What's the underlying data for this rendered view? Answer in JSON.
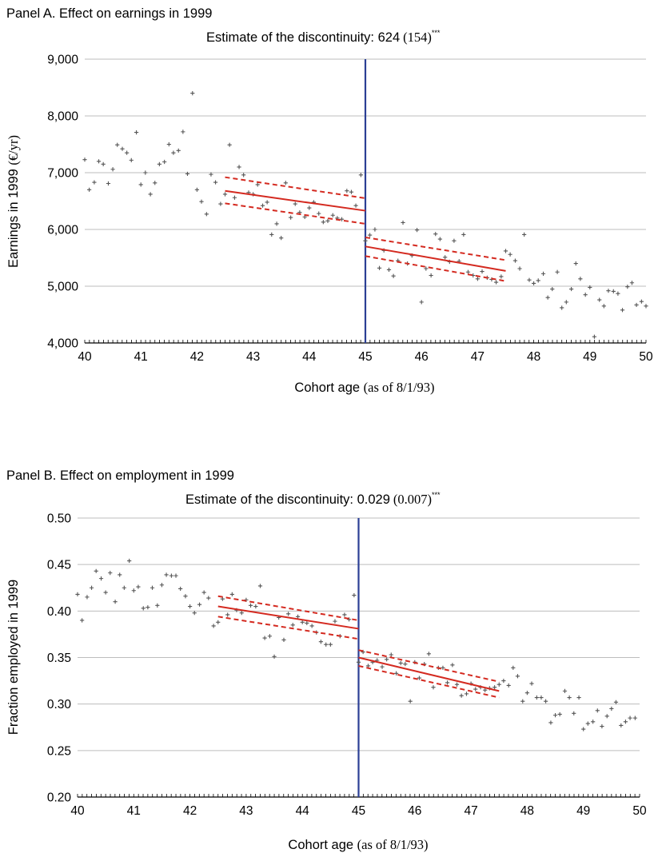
{
  "chart_data": [
    {
      "type": "scatter",
      "panel_title": "Panel A. Effect on earnings in 1999",
      "estimate_label": "Estimate of the discontinuity: ",
      "estimate_value": "624",
      "estimate_se": "(154)",
      "estimate_stars": "***",
      "xlabel_main": "Cohort age ",
      "xlabel_paren": "(as of 8/1/93)",
      "ylabel_main": "Earnings in  1999 ",
      "ylabel_paren": "(€/yr)",
      "xlim": [
        40,
        50
      ],
      "ylim": [
        4000,
        9000
      ],
      "xticks": [
        40,
        41,
        42,
        43,
        44,
        45,
        46,
        47,
        48,
        49,
        50
      ],
      "yticks": [
        4000,
        5000,
        6000,
        7000,
        8000,
        9000
      ],
      "ytick_labels": [
        "4,000",
        "5,000",
        "6,000",
        "7,000",
        "8,000",
        "9,000"
      ],
      "grid": true,
      "cutoff_x": 45,
      "colors": {
        "points": "#555555",
        "fit": "#d42a20",
        "cutoff": "#2b3f95",
        "grid": "#bdbdbd"
      },
      "fit_left": {
        "x": [
          42.5,
          45
        ],
        "y": [
          6680,
          6330
        ],
        "ci_upper": [
          6920,
          6550
        ],
        "ci_lower": [
          6460,
          6100
        ]
      },
      "fit_right": {
        "x": [
          45,
          47.5
        ],
        "y": [
          5700,
          5270
        ],
        "ci_upper": [
          5860,
          5460
        ],
        "ci_lower": [
          5530,
          5090
        ]
      },
      "points": [
        [
          40.0,
          7230
        ],
        [
          40.08,
          6700
        ],
        [
          40.17,
          6830
        ],
        [
          40.25,
          7200
        ],
        [
          40.33,
          7150
        ],
        [
          40.42,
          6810
        ],
        [
          40.5,
          7060
        ],
        [
          40.58,
          7490
        ],
        [
          40.67,
          7420
        ],
        [
          40.75,
          7350
        ],
        [
          40.83,
          7220
        ],
        [
          40.92,
          7710
        ],
        [
          41.0,
          6790
        ],
        [
          41.08,
          7000
        ],
        [
          41.17,
          6620
        ],
        [
          41.25,
          6820
        ],
        [
          41.33,
          7150
        ],
        [
          41.42,
          7190
        ],
        [
          41.5,
          7500
        ],
        [
          41.58,
          7350
        ],
        [
          41.67,
          7390
        ],
        [
          41.75,
          7720
        ],
        [
          41.83,
          6980
        ],
        [
          41.92,
          8400
        ],
        [
          42.0,
          6700
        ],
        [
          42.08,
          6490
        ],
        [
          42.17,
          6270
        ],
        [
          42.25,
          6970
        ],
        [
          42.33,
          6830
        ],
        [
          42.42,
          6450
        ],
        [
          42.5,
          6620
        ],
        [
          42.58,
          7490
        ],
        [
          42.67,
          6560
        ],
        [
          42.75,
          7100
        ],
        [
          42.83,
          6960
        ],
        [
          42.92,
          6650
        ],
        [
          43.0,
          6620
        ],
        [
          43.08,
          6790
        ],
        [
          43.17,
          6420
        ],
        [
          43.25,
          6480
        ],
        [
          43.33,
          5910
        ],
        [
          43.42,
          6100
        ],
        [
          43.5,
          5850
        ],
        [
          43.58,
          6820
        ],
        [
          43.67,
          6210
        ],
        [
          43.75,
          6450
        ],
        [
          43.83,
          6300
        ],
        [
          43.92,
          6220
        ],
        [
          44.0,
          6380
        ],
        [
          44.08,
          6480
        ],
        [
          44.17,
          6280
        ],
        [
          44.25,
          6130
        ],
        [
          44.33,
          6150
        ],
        [
          44.42,
          6250
        ],
        [
          44.5,
          6200
        ],
        [
          44.58,
          6180
        ],
        [
          44.67,
          6680
        ],
        [
          44.75,
          6660
        ],
        [
          44.83,
          6420
        ],
        [
          44.92,
          6960
        ],
        [
          45.0,
          5800
        ],
        [
          45.08,
          5900
        ],
        [
          45.17,
          6000
        ],
        [
          45.25,
          5320
        ],
        [
          45.33,
          5630
        ],
        [
          45.42,
          5290
        ],
        [
          45.5,
          5180
        ],
        [
          45.58,
          5450
        ],
        [
          45.67,
          6120
        ],
        [
          45.75,
          5400
        ],
        [
          45.83,
          5540
        ],
        [
          45.92,
          5990
        ],
        [
          46.0,
          4720
        ],
        [
          46.08,
          5310
        ],
        [
          46.17,
          5190
        ],
        [
          46.25,
          5920
        ],
        [
          46.33,
          5830
        ],
        [
          46.42,
          5510
        ],
        [
          46.5,
          5430
        ],
        [
          46.58,
          5800
        ],
        [
          46.67,
          5440
        ],
        [
          46.75,
          5910
        ],
        [
          46.83,
          5250
        ],
        [
          46.92,
          5190
        ],
        [
          47.0,
          5130
        ],
        [
          47.08,
          5260
        ],
        [
          47.17,
          5150
        ],
        [
          47.25,
          5120
        ],
        [
          47.33,
          5070
        ],
        [
          47.42,
          5170
        ],
        [
          47.5,
          5620
        ],
        [
          47.58,
          5560
        ],
        [
          47.67,
          5450
        ],
        [
          47.75,
          5310
        ],
        [
          47.83,
          5910
        ],
        [
          47.92,
          5110
        ],
        [
          48.0,
          5050
        ],
        [
          48.08,
          5100
        ],
        [
          48.17,
          5220
        ],
        [
          48.25,
          4800
        ],
        [
          48.33,
          4950
        ],
        [
          48.42,
          5250
        ],
        [
          48.5,
          4620
        ],
        [
          48.58,
          4720
        ],
        [
          48.67,
          4950
        ],
        [
          48.75,
          5400
        ],
        [
          48.83,
          5130
        ],
        [
          48.92,
          4850
        ],
        [
          49.0,
          4980
        ],
        [
          49.08,
          4110
        ],
        [
          49.17,
          4760
        ],
        [
          49.25,
          4650
        ],
        [
          49.33,
          4920
        ],
        [
          49.42,
          4910
        ],
        [
          49.5,
          4870
        ],
        [
          49.58,
          4580
        ],
        [
          49.67,
          4990
        ],
        [
          49.75,
          5060
        ],
        [
          49.83,
          4670
        ],
        [
          49.92,
          4730
        ],
        [
          50.0,
          4650
        ]
      ]
    },
    {
      "type": "scatter",
      "panel_title": "Panel B. Effect on employment in 1999",
      "estimate_label": "Estimate of the discontinuity: ",
      "estimate_value": "0.029",
      "estimate_se": "(0.007)",
      "estimate_stars": "***",
      "xlabel_main": "Cohort age ",
      "xlabel_paren": "(as of 8/1/93)",
      "ylabel_main": "Fraction employed in 1999",
      "ylabel_paren": "",
      "xlim": [
        40,
        50
      ],
      "ylim": [
        0.2,
        0.5
      ],
      "xticks": [
        40,
        41,
        42,
        43,
        44,
        45,
        46,
        47,
        48,
        49,
        50
      ],
      "yticks": [
        0.2,
        0.25,
        0.3,
        0.35,
        0.4,
        0.45,
        0.5
      ],
      "ytick_labels": [
        "0.20",
        "0.25",
        "0.30",
        "0.35",
        "0.40",
        "0.45",
        "0.50"
      ],
      "grid": true,
      "cutoff_x": 45,
      "colors": {
        "points": "#555555",
        "fit": "#d42a20",
        "cutoff": "#2b3f95",
        "grid": "#bdbdbd"
      },
      "fit_left": {
        "x": [
          42.5,
          45
        ],
        "y": [
          0.405,
          0.381
        ],
        "ci_upper": [
          0.416,
          0.39
        ],
        "ci_lower": [
          0.394,
          0.37
        ]
      },
      "fit_right": {
        "x": [
          45,
          47.5
        ],
        "y": [
          0.35,
          0.314
        ],
        "ci_upper": [
          0.358,
          0.324
        ],
        "ci_lower": [
          0.341,
          0.307
        ]
      },
      "points": [
        [
          40.0,
          0.418
        ],
        [
          40.08,
          0.39
        ],
        [
          40.17,
          0.415
        ],
        [
          40.25,
          0.425
        ],
        [
          40.33,
          0.443
        ],
        [
          40.42,
          0.435
        ],
        [
          40.5,
          0.42
        ],
        [
          40.58,
          0.441
        ],
        [
          40.67,
          0.41
        ],
        [
          40.75,
          0.439
        ],
        [
          40.83,
          0.425
        ],
        [
          40.92,
          0.454
        ],
        [
          41.0,
          0.422
        ],
        [
          41.08,
          0.426
        ],
        [
          41.17,
          0.403
        ],
        [
          41.25,
          0.404
        ],
        [
          41.33,
          0.425
        ],
        [
          41.42,
          0.406
        ],
        [
          41.5,
          0.428
        ],
        [
          41.58,
          0.439
        ],
        [
          41.67,
          0.438
        ],
        [
          41.75,
          0.438
        ],
        [
          41.83,
          0.424
        ],
        [
          41.92,
          0.416
        ],
        [
          42.0,
          0.405
        ],
        [
          42.08,
          0.398
        ],
        [
          42.17,
          0.407
        ],
        [
          42.25,
          0.42
        ],
        [
          42.33,
          0.414
        ],
        [
          42.42,
          0.384
        ],
        [
          42.5,
          0.388
        ],
        [
          42.58,
          0.413
        ],
        [
          42.67,
          0.396
        ],
        [
          42.75,
          0.418
        ],
        [
          42.83,
          0.401
        ],
        [
          42.92,
          0.398
        ],
        [
          43.0,
          0.412
        ],
        [
          43.08,
          0.406
        ],
        [
          43.17,
          0.405
        ],
        [
          43.25,
          0.427
        ],
        [
          43.33,
          0.371
        ],
        [
          43.42,
          0.373
        ],
        [
          43.5,
          0.351
        ],
        [
          43.58,
          0.393
        ],
        [
          43.67,
          0.369
        ],
        [
          43.75,
          0.397
        ],
        [
          43.83,
          0.385
        ],
        [
          43.92,
          0.394
        ],
        [
          44.0,
          0.388
        ],
        [
          44.08,
          0.387
        ],
        [
          44.17,
          0.384
        ],
        [
          44.25,
          0.377
        ],
        [
          44.33,
          0.367
        ],
        [
          44.42,
          0.364
        ],
        [
          44.5,
          0.364
        ],
        [
          44.58,
          0.389
        ],
        [
          44.67,
          0.373
        ],
        [
          44.75,
          0.396
        ],
        [
          44.83,
          0.391
        ],
        [
          44.92,
          0.417
        ],
        [
          45.0,
          0.345
        ],
        [
          45.08,
          0.356
        ],
        [
          45.17,
          0.341
        ],
        [
          45.25,
          0.345
        ],
        [
          45.33,
          0.347
        ],
        [
          45.42,
          0.34
        ],
        [
          45.5,
          0.348
        ],
        [
          45.58,
          0.353
        ],
        [
          45.67,
          0.333
        ],
        [
          45.75,
          0.344
        ],
        [
          45.83,
          0.343
        ],
        [
          45.92,
          0.303
        ],
        [
          46.0,
          0.345
        ],
        [
          46.08,
          0.328
        ],
        [
          46.17,
          0.343
        ],
        [
          46.25,
          0.354
        ],
        [
          46.33,
          0.318
        ],
        [
          46.42,
          0.339
        ],
        [
          46.5,
          0.339
        ],
        [
          46.58,
          0.323
        ],
        [
          46.67,
          0.342
        ],
        [
          46.75,
          0.321
        ],
        [
          46.83,
          0.309
        ],
        [
          46.92,
          0.311
        ],
        [
          47.0,
          0.322
        ],
        [
          47.08,
          0.316
        ],
        [
          47.17,
          0.318
        ],
        [
          47.25,
          0.315
        ],
        [
          47.33,
          0.317
        ],
        [
          47.42,
          0.318
        ],
        [
          47.5,
          0.321
        ],
        [
          47.58,
          0.325
        ],
        [
          47.67,
          0.32
        ],
        [
          47.75,
          0.339
        ],
        [
          47.83,
          0.33
        ],
        [
          47.92,
          0.303
        ],
        [
          48.0,
          0.312
        ],
        [
          48.08,
          0.322
        ],
        [
          48.17,
          0.307
        ],
        [
          48.25,
          0.307
        ],
        [
          48.33,
          0.303
        ],
        [
          48.42,
          0.28
        ],
        [
          48.5,
          0.288
        ],
        [
          48.58,
          0.289
        ],
        [
          48.67,
          0.314
        ],
        [
          48.75,
          0.307
        ],
        [
          48.83,
          0.29
        ],
        [
          48.92,
          0.307
        ],
        [
          49.0,
          0.273
        ],
        [
          49.08,
          0.279
        ],
        [
          49.17,
          0.281
        ],
        [
          49.25,
          0.293
        ],
        [
          49.33,
          0.276
        ],
        [
          49.42,
          0.287
        ],
        [
          49.5,
          0.295
        ],
        [
          49.58,
          0.302
        ],
        [
          49.67,
          0.277
        ],
        [
          49.75,
          0.281
        ],
        [
          49.83,
          0.285
        ],
        [
          49.92,
          0.285
        ]
      ]
    }
  ]
}
